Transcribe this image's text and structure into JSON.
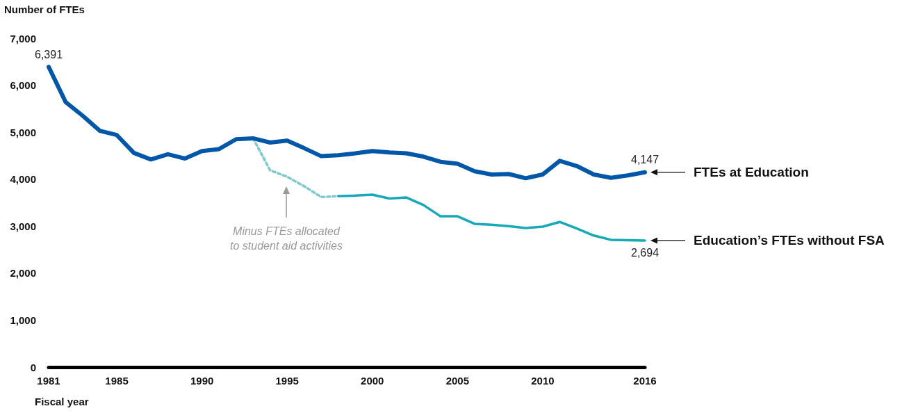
{
  "chart_data": {
    "type": "line",
    "ylabel": "Number of FTEs",
    "xlabel": "Fiscal year",
    "x": [
      1981,
      1982,
      1983,
      1984,
      1985,
      1986,
      1987,
      1988,
      1989,
      1990,
      1991,
      1992,
      1993,
      1994,
      1995,
      1996,
      1997,
      1998,
      1999,
      2000,
      2001,
      2002,
      2003,
      2004,
      2005,
      2006,
      2007,
      2008,
      2009,
      2010,
      2011,
      2012,
      2013,
      2014,
      2015,
      2016
    ],
    "series": [
      {
        "name": "FTEs at Education",
        "color": "#0057a8",
        "line_style": "solid",
        "values": [
          6391,
          5640,
          5350,
          5030,
          4940,
          4560,
          4420,
          4530,
          4440,
          4600,
          4640,
          4850,
          4870,
          4780,
          4820,
          4660,
          4490,
          4510,
          4550,
          4600,
          4570,
          4550,
          4480,
          4370,
          4330,
          4170,
          4100,
          4110,
          4020,
          4100,
          4390,
          4280,
          4100,
          4030,
          4080,
          4147
        ],
        "value_labels": [
          "6,391",
          null,
          null,
          null,
          null,
          null,
          null,
          null,
          null,
          null,
          null,
          null,
          null,
          null,
          null,
          null,
          null,
          null,
          null,
          null,
          null,
          null,
          null,
          null,
          null,
          null,
          null,
          null,
          null,
          null,
          null,
          null,
          null,
          null,
          null,
          "4,147"
        ]
      },
      {
        "color": "#7ec8cf",
        "line_style": "dashed",
        "values": [
          null,
          null,
          null,
          null,
          null,
          null,
          null,
          null,
          null,
          null,
          null,
          null,
          4870,
          4190,
          4050,
          3850,
          3620,
          3640,
          null,
          null,
          null,
          null,
          null,
          null,
          null,
          null,
          null,
          null,
          null,
          null,
          null,
          null,
          null,
          null,
          null,
          null
        ]
      },
      {
        "name": "Education’s FTEs without FSA",
        "color": "#17a9b7",
        "line_style": "solid",
        "values": [
          null,
          null,
          null,
          null,
          null,
          null,
          null,
          null,
          null,
          null,
          null,
          null,
          null,
          null,
          null,
          null,
          null,
          3640,
          3650,
          3670,
          3590,
          3610,
          3450,
          3210,
          3210,
          3050,
          3030,
          3000,
          2960,
          2990,
          3090,
          2950,
          2800,
          2710,
          2700,
          2694
        ],
        "value_labels": [
          null,
          null,
          null,
          null,
          null,
          null,
          null,
          null,
          null,
          null,
          null,
          null,
          null,
          null,
          null,
          null,
          null,
          null,
          null,
          null,
          null,
          null,
          null,
          null,
          null,
          null,
          null,
          null,
          null,
          null,
          null,
          null,
          null,
          null,
          null,
          "2,694"
        ]
      }
    ],
    "annotations": [
      "Minus FTEs allocated\nto student aid activities"
    ],
    "xlim": [
      1981,
      2016
    ],
    "xticks": [
      1981,
      1985,
      1990,
      1995,
      2000,
      2005,
      2010,
      2016
    ],
    "ylim": [
      0,
      7000
    ],
    "yticks": [
      0,
      {
        "value": 1000,
        "label": "1,000"
      },
      {
        "value": 2000,
        "label": "2,000"
      },
      {
        "value": 3000,
        "label": "3,000"
      },
      {
        "value": 4000,
        "label": "4,000"
      },
      {
        "value": 5000,
        "label": "5,000"
      },
      {
        "value": 6000,
        "label": "6,000"
      },
      {
        "value": 7000,
        "label": "7,000"
      }
    ],
    "grid": false,
    "legend": false,
    "marker": "none"
  }
}
